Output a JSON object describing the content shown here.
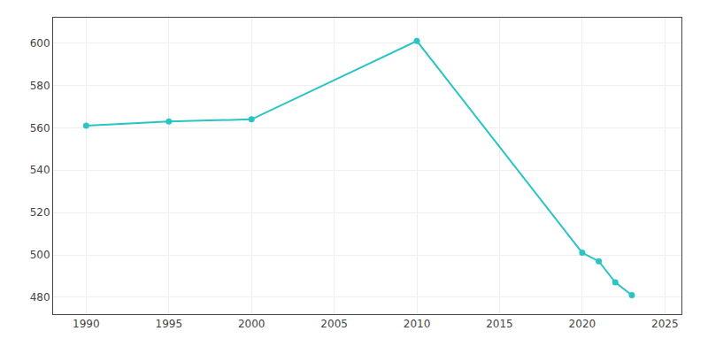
{
  "chart_data": {
    "type": "line",
    "x": [
      1990,
      1995,
      2000,
      2010,
      2020,
      2021,
      2022,
      2023
    ],
    "values": [
      561,
      563,
      564,
      601,
      501,
      497,
      487,
      481
    ],
    "color": "#2ac4c4",
    "marker": "circle",
    "xlim": [
      1988,
      2026
    ],
    "ylim": [
      472,
      612
    ],
    "xticks": [
      1990,
      1995,
      2000,
      2005,
      2010,
      2015,
      2020,
      2025
    ],
    "yticks": [
      480,
      500,
      520,
      540,
      560,
      580,
      600
    ],
    "grid": true
  }
}
